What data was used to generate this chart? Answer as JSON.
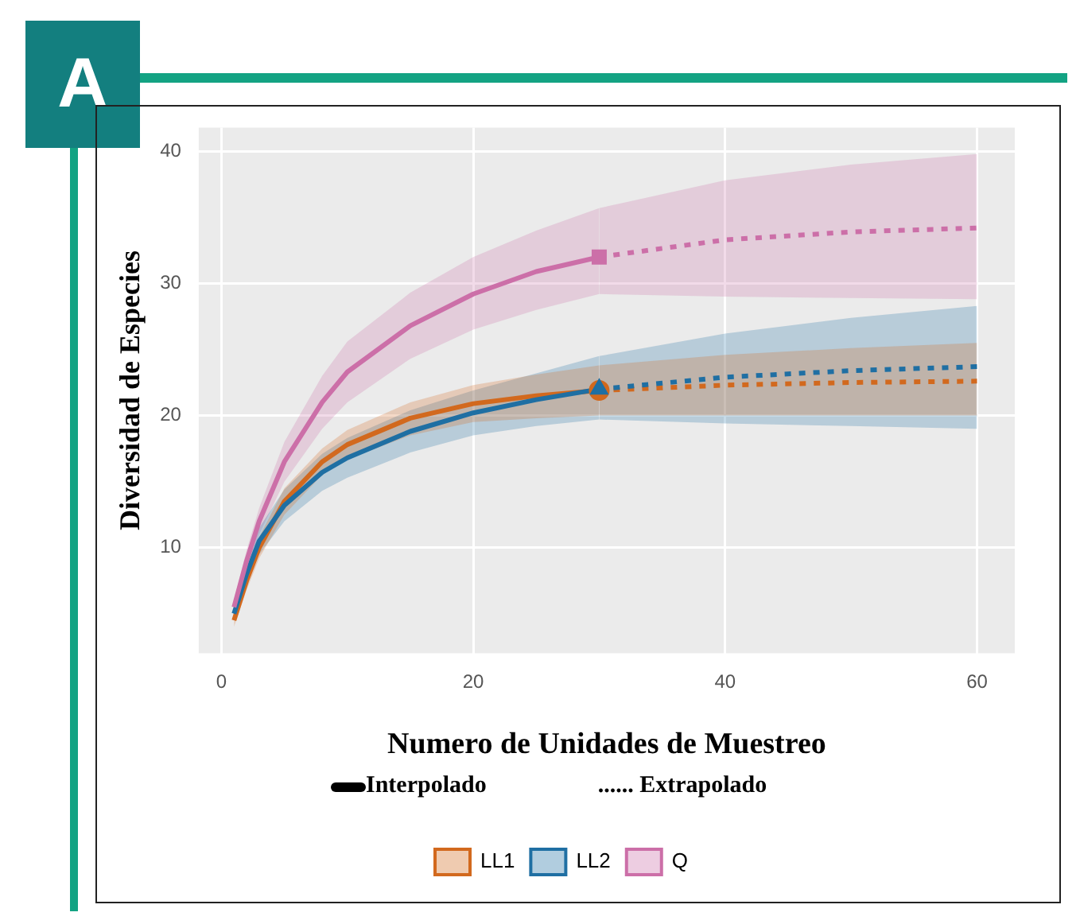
{
  "chart_data": {
    "type": "line",
    "xlabel": "Numero de Unidades de Muestreo",
    "ylabel": "Diversidad de Especies",
    "xlim": [
      -1.8,
      63
    ],
    "xticks": [
      0,
      20,
      40,
      60
    ],
    "ylim": [
      2,
      41.8
    ],
    "yticks": [
      10,
      20,
      30,
      40
    ],
    "grid": true,
    "legend": "bottom",
    "annotations": [
      "A",
      "Interpolado",
      "...... Extrapolado"
    ],
    "series": [
      {
        "name": "LL1",
        "color": "#d2691e",
        "line_style": "solid",
        "x": [
          1,
          2,
          3,
          5,
          8,
          10,
          15,
          20,
          25,
          30
        ],
        "values": [
          4.5,
          7.5,
          10,
          13.5,
          16.5,
          17.8,
          19.8,
          20.9,
          21.5,
          21.9
        ],
        "lower": [
          4,
          6.8,
          9.2,
          12.5,
          15.5,
          16.7,
          18.5,
          19.5,
          19.8,
          20
        ],
        "upper": [
          5,
          8.2,
          10.8,
          14.5,
          17.5,
          18.9,
          21,
          22.3,
          23.1,
          23.8
        ]
      },
      {
        "color": "#d2691e",
        "line_style": "dotted",
        "x": [
          30,
          40,
          50,
          60
        ],
        "values": [
          21.9,
          22.3,
          22.5,
          22.6
        ],
        "lower": [
          20,
          20,
          20,
          20
        ],
        "upper": [
          23.8,
          24.6,
          25.1,
          25.5
        ]
      },
      {
        "name": "LL2",
        "color": "#1f6fa3",
        "line_style": "solid",
        "x": [
          1,
          2,
          3,
          5,
          8,
          10,
          15,
          20,
          25,
          30
        ],
        "values": [
          5,
          8,
          10.5,
          13.2,
          15.7,
          16.8,
          18.8,
          20.2,
          21.2,
          22
        ],
        "lower": [
          4.5,
          7.2,
          9.5,
          12,
          14.3,
          15.3,
          17.2,
          18.5,
          19.2,
          19.7
        ],
        "upper": [
          5.5,
          8.8,
          11.5,
          14.4,
          17.1,
          18.3,
          20.4,
          21.9,
          23.2,
          24.5
        ]
      },
      {
        "color": "#1f6fa3",
        "line_style": "dotted",
        "x": [
          30,
          40,
          50,
          60
        ],
        "values": [
          22,
          22.9,
          23.4,
          23.7
        ],
        "lower": [
          19.7,
          19.4,
          19.2,
          19
        ],
        "upper": [
          24.5,
          26.2,
          27.4,
          28.3
        ]
      },
      {
        "name": "Q",
        "color": "#cc6fa8",
        "line_style": "solid",
        "x": [
          1,
          2,
          3,
          5,
          8,
          10,
          15,
          20,
          25,
          30
        ],
        "values": [
          5.5,
          9,
          12,
          16.5,
          21,
          23.3,
          26.8,
          29.2,
          30.9,
          32
        ],
        "lower": [
          5,
          8.2,
          11,
          15,
          19,
          21,
          24.3,
          26.5,
          28,
          29.2
        ],
        "upper": [
          6,
          9.8,
          13,
          18,
          23,
          25.6,
          29.3,
          32,
          34,
          35.7
        ]
      },
      {
        "color": "#cc6fa8",
        "line_style": "dotted",
        "x": [
          30,
          40,
          50,
          60
        ],
        "values": [
          32,
          33.3,
          33.9,
          34.2
        ],
        "lower": [
          29.2,
          29,
          28.9,
          28.8
        ],
        "upper": [
          35.7,
          37.8,
          39,
          39.8
        ]
      },
      {
        "type": "scatter",
        "color": "#d2691e",
        "marker": "circle",
        "x": [
          30
        ],
        "values": [
          21.9
        ]
      },
      {
        "type": "scatter",
        "color": "#1f6fa3",
        "marker": "triangle",
        "x": [
          30
        ],
        "values": [
          22
        ]
      },
      {
        "type": "scatter",
        "color": "#cc6fa8",
        "marker": "square",
        "x": [
          30
        ],
        "values": [
          32
        ]
      }
    ]
  }
}
